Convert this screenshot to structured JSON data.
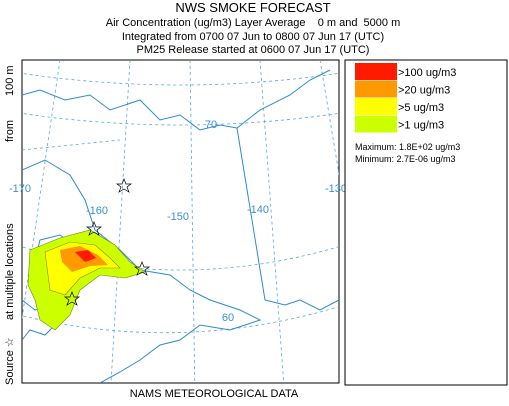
{
  "header": {
    "title": "NWS SMOKE FORECAST",
    "lines": [
      "Air Concentration (ug/m3) Layer Average    0 m and  5000 m",
      "Integrated from 0700 07 Jun to 0800 07 Jun 17 (UTC)",
      "PM25 Release started at 0600 07 Jun 17 (UTC)"
    ]
  },
  "legend": {
    "items": [
      {
        "label": ">100 ug/m3",
        "color": "#ff1a00"
      },
      {
        "label": ">20 ug/m3",
        "color": "#ff9900"
      },
      {
        "label": ">5 ug/m3",
        "color": "#ffff00"
      },
      {
        "label": ">1 ug/m3",
        "color": "#ccff00"
      }
    ],
    "maximum": "Maximum: 1.8E+02 ug/m3",
    "minimum": "Minimum: 2.7E-06 ug/m3"
  },
  "map": {
    "labels": [
      "-170",
      "-160",
      "-150",
      "-140",
      "-130",
      "70",
      "60"
    ]
  },
  "side_text": [
    "Source ☆",
    "at multiple locations",
    "from",
    "100 m"
  ],
  "footer": "NAMS METEOROLOGICAL DATA"
}
